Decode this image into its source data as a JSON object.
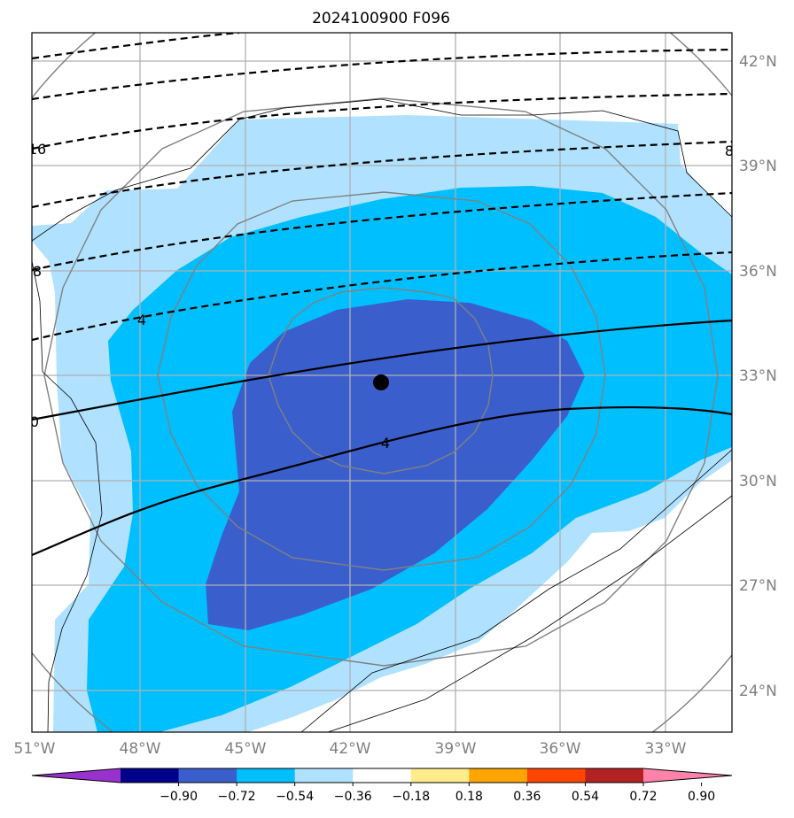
{
  "chart_data": {
    "type": "map-contour",
    "title": "2024100900 F096",
    "lon_ticks": [
      "51°W",
      "48°W",
      "45°W",
      "42°W",
      "39°W",
      "36°W",
      "33°W"
    ],
    "lat_ticks": [
      "42°N",
      "39°N",
      "36°N",
      "33°N",
      "30°N",
      "27°N",
      "24°N"
    ],
    "extent": {
      "lon": [
        -51,
        -31
      ],
      "lat": [
        23,
        42.8
      ]
    },
    "center": {
      "lon": -41.0,
      "lat": 32.8
    },
    "colorbar": {
      "ticks": [
        "−0.90",
        "−0.72",
        "−0.54",
        "−0.36",
        "−0.18",
        "0.18",
        "0.36",
        "0.54",
        "0.72",
        "0.90"
      ],
      "bounds": [
        -0.9,
        -0.72,
        -0.54,
        -0.36,
        -0.18,
        0.18,
        0.36,
        0.54,
        0.72,
        0.9
      ],
      "colors": [
        "#9932cc",
        "#00008b",
        "#3a5fcd",
        "#00bfff",
        "#b0e2ff",
        "#ffffff",
        "#ffec8b",
        "#ffa500",
        "#ff4500",
        "#b22222",
        "#ff82ab"
      ],
      "extend": "both"
    },
    "contour_labels": [
      "16",
      "8",
      "4",
      "0",
      "4",
      "8"
    ],
    "filled_levels": [
      -0.54,
      -0.36,
      -0.18
    ],
    "grid": true
  }
}
